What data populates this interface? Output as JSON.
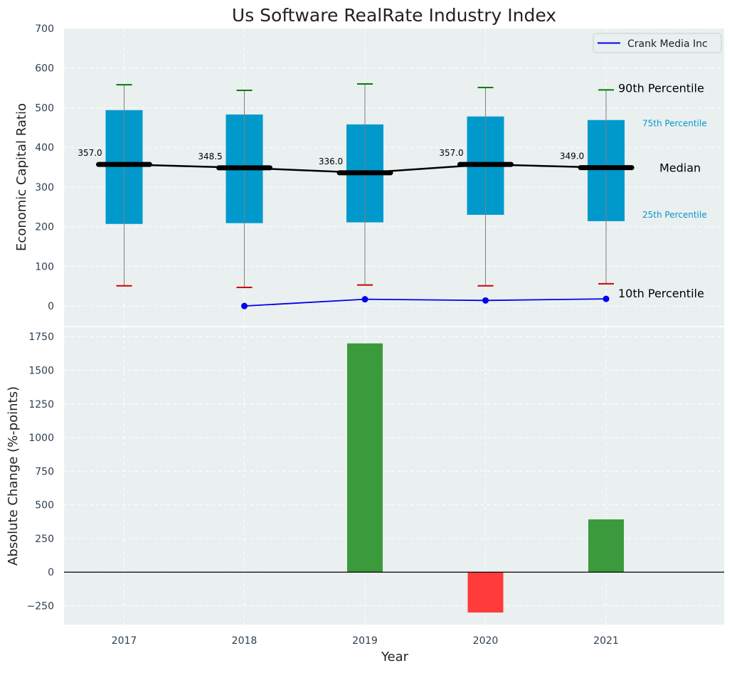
{
  "chart_data": [
    {
      "type": "box",
      "title": "Us Software RealRate Industry Index",
      "xlabel": "",
      "ylabel": "Economic Capital Ratio",
      "ylim": [
        -50,
        700
      ],
      "yticks": [
        0,
        100,
        200,
        300,
        400,
        500,
        600,
        700
      ],
      "categories": [
        "2017",
        "2018",
        "2019",
        "2020",
        "2021"
      ],
      "boxes": [
        {
          "year": "2017",
          "p10": 51,
          "p25": 207,
          "median": 357.0,
          "p75": 494,
          "p90": 558
        },
        {
          "year": "2018",
          "p10": 47,
          "p25": 209,
          "median": 348.5,
          "p75": 483,
          "p90": 544
        },
        {
          "year": "2019",
          "p10": 53,
          "p25": 211,
          "median": 336.0,
          "p75": 458,
          "p90": 560
        },
        {
          "year": "2020",
          "p10": 51,
          "p25": 230,
          "median": 357.0,
          "p75": 478,
          "p90": 551
        },
        {
          "year": "2021",
          "p10": 56,
          "p25": 214,
          "median": 349.0,
          "p75": 469,
          "p90": 545
        }
      ],
      "median_labels": [
        "357.0",
        "348.5",
        "336.0",
        "357.0",
        "349.0"
      ],
      "company_series": {
        "name": "Crank Media Inc",
        "x": [
          "2018",
          "2019",
          "2020",
          "2021"
        ],
        "values": [
          0,
          17,
          14,
          18
        ]
      },
      "annotations": {
        "p90": "90th Percentile",
        "p75": "75th Percentile",
        "median": "Median",
        "p25": "25th Percentile",
        "p10": "10th Percentile"
      },
      "legend": {
        "position": "top-right",
        "entries": [
          "Crank Media Inc"
        ]
      },
      "grid": true
    },
    {
      "type": "bar",
      "title": "",
      "xlabel": "Year",
      "ylabel": "Absolute Change (%-points)",
      "ylim": [
        -390,
        1820
      ],
      "yticks": [
        -250,
        0,
        250,
        500,
        750,
        1000,
        1250,
        1500,
        1750
      ],
      "ytick_labels": [
        "−250",
        "0",
        "250",
        "500",
        "750",
        "1000",
        "1250",
        "1500",
        "1750"
      ],
      "categories": [
        "2017",
        "2018",
        "2019",
        "2020",
        "2021"
      ],
      "values": [
        null,
        null,
        1700,
        -300,
        392
      ],
      "grid": true
    }
  ],
  "colors": {
    "background": "#eaeff0",
    "box": "#0099cc",
    "median_line": "#000000",
    "whisker_line": "#808080",
    "p90_cap": "#008000",
    "p10_cap": "#cc0000",
    "company_line": "#0000ee",
    "positive_bar": "#3a9a3c",
    "negative_bar": "#ff3b3b",
    "tick_text": "#2e3f51"
  }
}
